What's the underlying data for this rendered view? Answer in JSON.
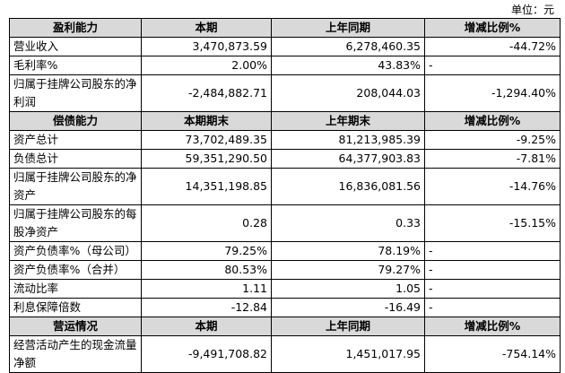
{
  "unit": "单位：元",
  "sections": [
    {
      "header": [
        "盈利能力",
        "本期",
        "上年同期",
        "增减比例%"
      ],
      "rows": [
        [
          "营业收入",
          "3,470,873.59",
          "6,278,460.35",
          "-44.72%"
        ],
        [
          "毛利率%",
          "2.00%",
          "43.83%",
          "-"
        ],
        [
          "归属于挂牌公司股东的净利润",
          "-2,484,882.71",
          "208,044.03",
          "-1,294.40%"
        ]
      ]
    },
    {
      "header": [
        "偿债能力",
        "本期期末",
        "上年期末",
        "增减比例%"
      ],
      "rows": [
        [
          "资产总计",
          "73,702,489.35",
          "81,213,985.39",
          "-9.25%"
        ],
        [
          "负债总计",
          "59,351,290.50",
          "64,377,903.83",
          "-7.81%"
        ],
        [
          "归属于挂牌公司股东的净资产",
          "14,351,198.85",
          "16,836,081.56",
          "-14.76%"
        ],
        [
          "归属于挂牌公司股东的每股净资产",
          "0.28",
          "0.33",
          "-15.15%"
        ],
        [
          "资产负债率%（母公司）",
          "79.25%",
          "78.19%",
          "-"
        ],
        [
          "资产负债率%（合并）",
          "80.53%",
          "79.27%",
          "-"
        ],
        [
          "流动比率",
          "1.11",
          "1.05",
          "-"
        ],
        [
          "利息保障倍数",
          "-12.84",
          "-16.49",
          "-"
        ]
      ]
    },
    {
      "header": [
        "营运情况",
        "本期",
        "上年同期",
        "增减比例%"
      ],
      "rows": [
        [
          "经营活动产生的现金流量净额",
          "-9,491,708.82",
          "1,451,017.95",
          "-754.14%"
        ]
      ]
    }
  ]
}
